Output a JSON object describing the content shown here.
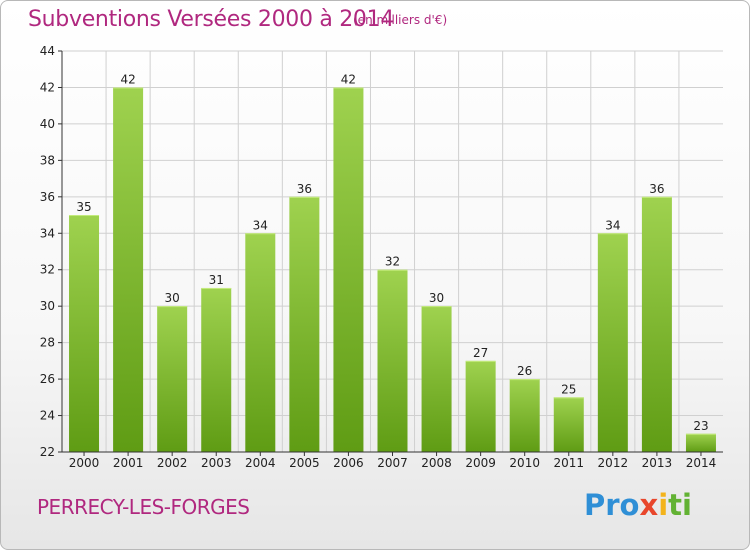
{
  "header": {
    "title": "Subventions Versées 2000 à 2014",
    "subtitle": "(en milliers d'€)"
  },
  "footer": {
    "commune": "PERRECY-LES-FORGES",
    "logo": [
      "Pro",
      "x",
      "i",
      "ti"
    ]
  },
  "colors": {
    "accent": "#b0287f",
    "bar_top": "#9fd24f",
    "bar_bottom": "#5f9c14",
    "grid": "#d0d0d0"
  },
  "chart_data": {
    "type": "bar",
    "categories": [
      "2000",
      "2001",
      "2002",
      "2003",
      "2004",
      "2005",
      "2006",
      "2007",
      "2008",
      "2009",
      "2010",
      "2011",
      "2012",
      "2013",
      "2014"
    ],
    "values": [
      35,
      42,
      30,
      31,
      34,
      36,
      42,
      32,
      30,
      27,
      26,
      25,
      34,
      36,
      23
    ],
    "title": "Subventions Versées 2000 à 2014",
    "subtitle": "(en milliers d'€)",
    "xlabel": "",
    "ylabel": "",
    "ylim": [
      22,
      44
    ],
    "yticks": [
      22,
      24,
      26,
      28,
      30,
      32,
      34,
      36,
      38,
      40,
      42,
      44
    ],
    "grid": true,
    "legend": "none"
  }
}
